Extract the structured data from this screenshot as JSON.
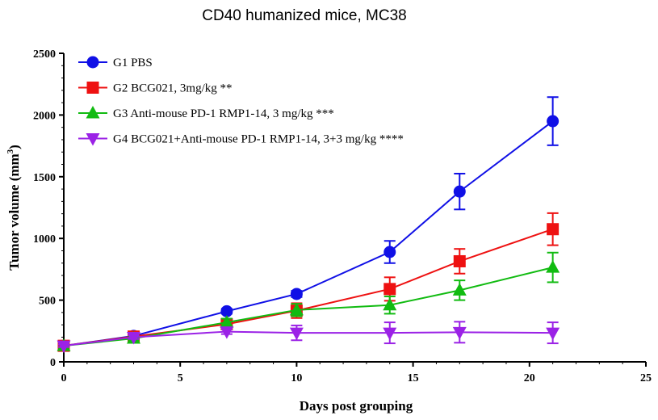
{
  "chart_data": {
    "type": "line",
    "title": "CD40 humanized mice, MC38",
    "xlabel": "Days post grouping",
    "ylabel_main": "Tumor volume (mm",
    "ylabel_sup": "3",
    "ylabel_close": ")",
    "xlim": [
      0,
      25
    ],
    "ylim": [
      0,
      2500
    ],
    "x_ticks": [
      0,
      5,
      10,
      15,
      20,
      25
    ],
    "y_ticks": [
      0,
      500,
      1000,
      1500,
      2000,
      2500
    ],
    "legend_position": "top-left",
    "grid": false,
    "series": [
      {
        "name": "G1 PBS",
        "color": "#1010e6",
        "marker": "circle",
        "x": [
          0,
          3,
          7,
          10,
          14,
          17,
          21
        ],
        "y": [
          130,
          210,
          410,
          550,
          890,
          1380,
          1950
        ],
        "err": [
          10,
          15,
          20,
          25,
          90,
          145,
          195
        ]
      },
      {
        "name": "G2 BCG021, 3mg/kg  **",
        "color": "#ee1111",
        "marker": "square",
        "x": [
          0,
          3,
          7,
          10,
          14,
          17,
          21
        ],
        "y": [
          130,
          205,
          305,
          415,
          590,
          815,
          1075
        ],
        "err": [
          10,
          20,
          40,
          60,
          95,
          100,
          130
        ]
      },
      {
        "name": "G3 Anti-mouse PD-1 RMP1-14, 3 mg/kg  ***",
        "color": "#11bb11",
        "marker": "triangle-up",
        "x": [
          0,
          3,
          7,
          10,
          14,
          17,
          21
        ],
        "y": [
          130,
          190,
          320,
          420,
          460,
          580,
          765
        ],
        "err": [
          10,
          15,
          30,
          50,
          70,
          80,
          120
        ]
      },
      {
        "name": "G4 BCG021+Anti-mouse PD-1 RMP1-14, 3+3 mg/kg  ****",
        "color": "#9b22e6",
        "marker": "triangle-down",
        "x": [
          0,
          3,
          7,
          10,
          14,
          17,
          21
        ],
        "y": [
          130,
          200,
          245,
          235,
          235,
          240,
          235
        ],
        "err": [
          10,
          15,
          20,
          60,
          85,
          85,
          85
        ]
      }
    ]
  }
}
